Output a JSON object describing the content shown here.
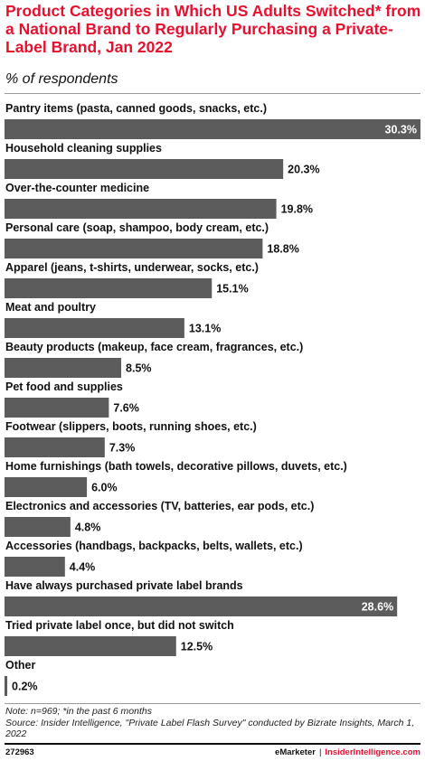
{
  "chart_data": {
    "type": "bar",
    "orientation": "horizontal",
    "title": "Product Categories in Which US Adults Switched* from a National Brand to Regularly Purchasing a Private-Label Brand, Jan 2022",
    "subtitle": "% of respondents",
    "categories": [
      "Pantry items (pasta, canned goods, snacks, etc.)",
      "Household cleaning supplies",
      "Over-the-counter medicine",
      "Personal care (soap, shampoo, body cream, etc.)",
      "Apparel (jeans, t-shirts, underwear, socks, etc.)",
      "Meat and poultry",
      "Beauty products (makeup, face cream, fragrances, etc.)",
      "Pet food and supplies",
      "Footwear (slippers, boots, running shoes, etc.)",
      "Home furnishings (bath towels, decorative pillows, duvets, etc.)",
      "Electronics and accessories (TV, batteries, ear pods, etc.)",
      "Accessories (handbags, backpacks, belts, wallets, etc.)",
      "Have always purchased private label brands",
      "Tried private label once, but did not switch",
      "Other"
    ],
    "values": [
      30.3,
      20.3,
      19.8,
      18.8,
      15.1,
      13.1,
      8.5,
      7.6,
      7.3,
      6.0,
      4.8,
      4.4,
      28.6,
      12.5,
      0.2
    ],
    "value_labels": [
      "30.3%",
      "20.3%",
      "19.8%",
      "18.8%",
      "15.1%",
      "13.1%",
      "8.5%",
      "7.6%",
      "7.3%",
      "6.0%",
      "4.8%",
      "4.4%",
      "28.6%",
      "12.5%",
      "0.2%"
    ],
    "xlim": [
      0,
      30.3
    ],
    "grid": false,
    "legend": "none",
    "bar_color": "#5c5c5c",
    "title_color": "#e8112d"
  },
  "footer": {
    "note": "Note: n=969; *in the past 6 months",
    "source": "Source: Insider Intelligence, \"Private Label Flash Survey\" conducted by Bizrate Insights, March 1, 2022",
    "chart_id": "272963",
    "brand": "eMarketer",
    "separator": "|",
    "site": "InsiderIntelligence.com"
  }
}
